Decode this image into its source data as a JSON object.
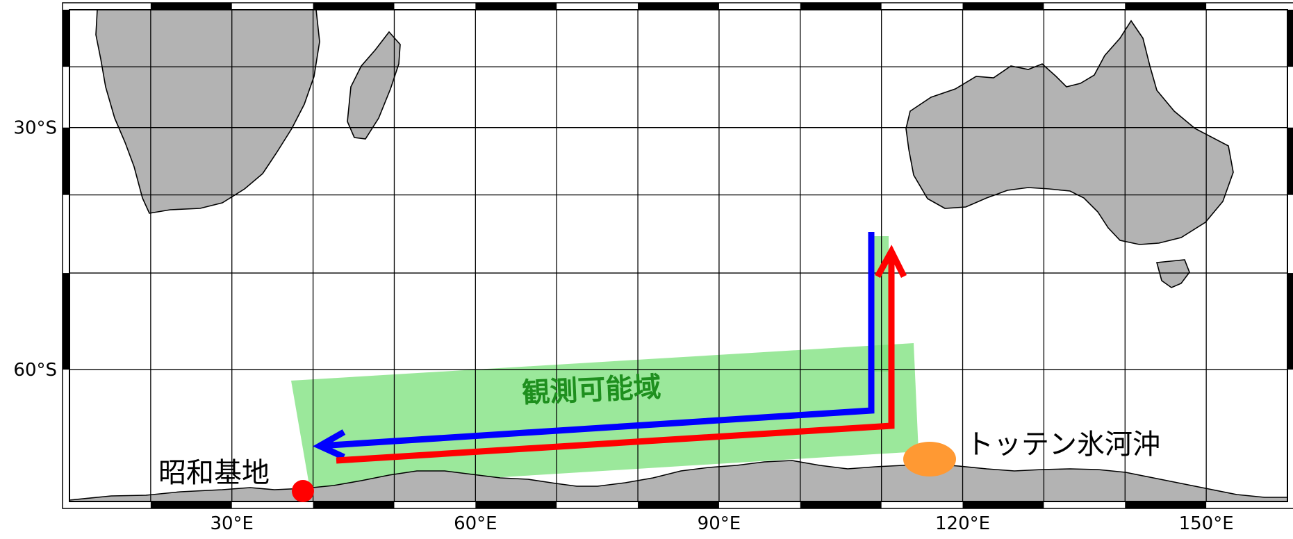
{
  "map": {
    "projection": "Mercator",
    "lon_range": [
      10,
      160
    ],
    "lat_range": [
      -70,
      -10
    ],
    "land_color": "#b3b3b3",
    "grid_color": "#000000",
    "x_ticks": [
      {
        "lon": 30,
        "label": "30°E"
      },
      {
        "lon": 60,
        "label": "60°E"
      },
      {
        "lon": 90,
        "label": "90°E"
      },
      {
        "lon": 120,
        "label": "120°E"
      },
      {
        "lon": 150,
        "label": "150°E"
      }
    ],
    "y_ticks": [
      {
        "lat": -30,
        "label": "30°S"
      },
      {
        "lat": -60,
        "label": "60°S"
      }
    ]
  },
  "annotations": {
    "observable_region": {
      "label": "観測可能域",
      "color": "#6fdc6f"
    },
    "syowa_station": {
      "label": "昭和基地",
      "lon": 39.6,
      "lat": -69.0,
      "color": "#ff0000"
    },
    "totten_glacier": {
      "label": "トッテン氷河沖",
      "lon": 116.3,
      "lat": -65.2,
      "color": "#ff9933"
    },
    "routes": [
      {
        "name": "blue",
        "color": "#0000ff"
      },
      {
        "name": "red",
        "color": "#ff0000"
      }
    ]
  }
}
